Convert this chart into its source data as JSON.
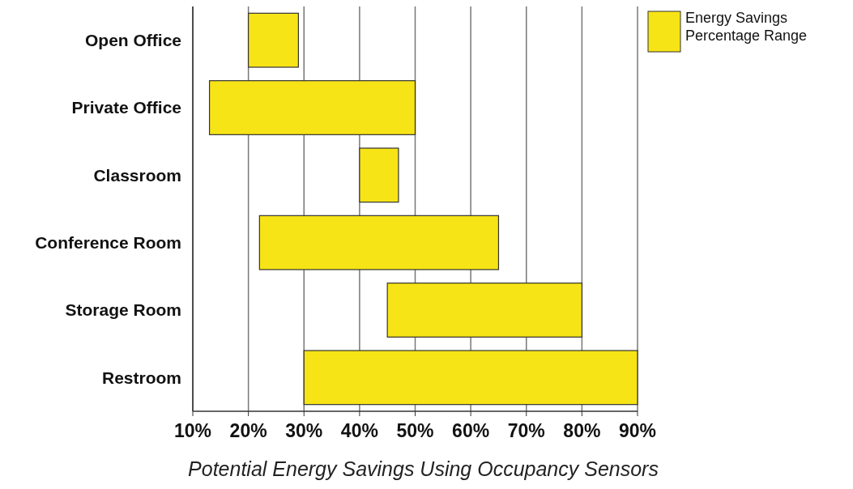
{
  "chart_data": {
    "type": "bar",
    "orientation": "horizontal",
    "title": "Potential Energy Savings Using Occupancy Sensors",
    "categories": [
      "Open Office",
      "Private Office",
      "Classroom",
      "Conference Room",
      "Storage Room",
      "Restroom"
    ],
    "series": [
      {
        "name": "Energy Savings Percentage Range",
        "color": "#f7e416",
        "values": [
          9,
          37,
          7,
          43,
          35,
          60
        ],
        "base": [
          20,
          13,
          40,
          22,
          45,
          30
        ]
      }
    ],
    "xlim": [
      10,
      90
    ],
    "xticks": [
      {
        "value": 10,
        "label": "10%"
      },
      {
        "value": 20,
        "label": "20%"
      },
      {
        "value": 30,
        "label": "30%"
      },
      {
        "value": 40,
        "label": "40%"
      },
      {
        "value": 50,
        "label": "50%"
      },
      {
        "value": 60,
        "label": "60%"
      },
      {
        "value": 70,
        "label": "70%"
      },
      {
        "value": 80,
        "label": "80%"
      },
      {
        "value": 90,
        "label": "90%"
      }
    ],
    "grid": "x",
    "legend": "top right"
  }
}
